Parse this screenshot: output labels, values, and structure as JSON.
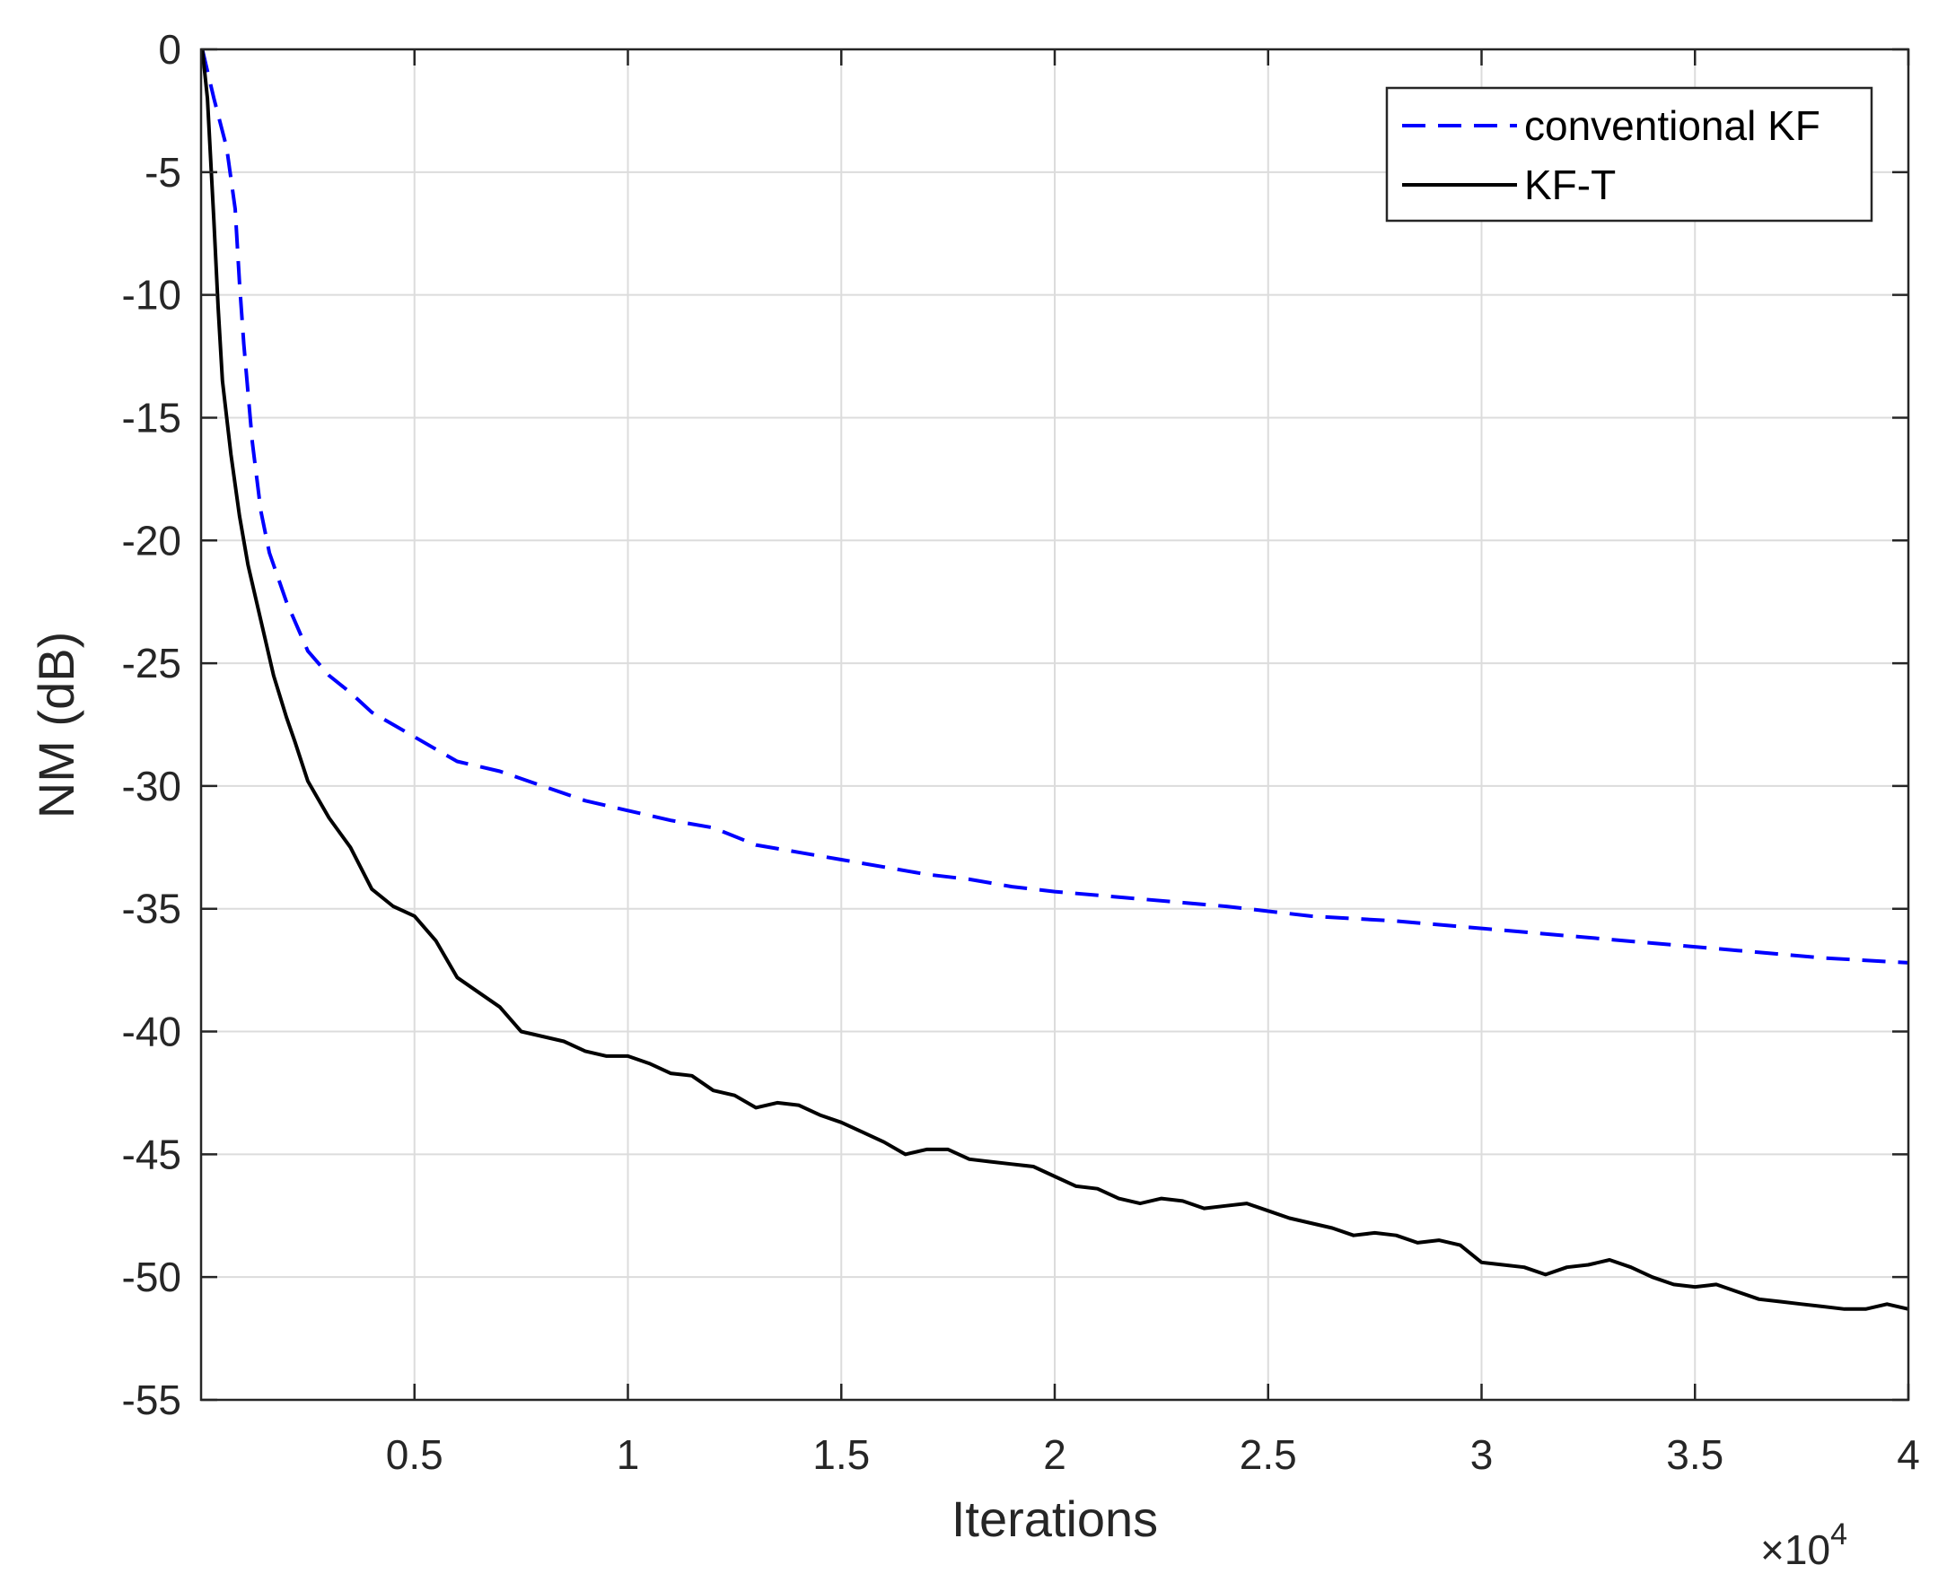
{
  "chart_data": {
    "type": "line",
    "xlabel": "Iterations",
    "ylabel": "NM (dB)",
    "x_exponent": {
      "base": "×10",
      "power": "4"
    },
    "xlim": [
      0,
      4
    ],
    "ylim": [
      -55,
      0
    ],
    "x_ticks": [
      {
        "value": 0.5,
        "label": "0.5"
      },
      {
        "value": 1,
        "label": "1"
      },
      {
        "value": 1.5,
        "label": "1.5"
      },
      {
        "value": 2,
        "label": "2"
      },
      {
        "value": 2.5,
        "label": "2.5"
      },
      {
        "value": 3,
        "label": "3"
      },
      {
        "value": 3.5,
        "label": "3.5"
      },
      {
        "value": 4,
        "label": "4"
      }
    ],
    "y_ticks": [
      {
        "value": 0,
        "label": "0"
      },
      {
        "value": -5,
        "label": "-5"
      },
      {
        "value": -10,
        "label": "-10"
      },
      {
        "value": -15,
        "label": "-15"
      },
      {
        "value": -20,
        "label": "-20"
      },
      {
        "value": -25,
        "label": "-25"
      },
      {
        "value": -30,
        "label": "-30"
      },
      {
        "value": -35,
        "label": "-35"
      },
      {
        "value": -40,
        "label": "-40"
      },
      {
        "value": -45,
        "label": "-45"
      },
      {
        "value": -50,
        "label": "-50"
      },
      {
        "value": -55,
        "label": "-55"
      }
    ],
    "grid": true,
    "legend_position": "top-right",
    "series": [
      {
        "name": "conventional KF",
        "color": "#0000ff",
        "style": "dashed",
        "x": [
          0.003,
          0.03,
          0.06,
          0.08,
          0.09,
          0.1,
          0.12,
          0.14,
          0.16,
          0.18,
          0.2,
          0.25,
          0.3,
          0.35,
          0.4,
          0.45,
          0.5,
          0.55,
          0.6,
          0.7,
          0.8,
          0.9,
          1.0,
          1.1,
          1.2,
          1.3,
          1.4,
          1.5,
          1.6,
          1.7,
          1.8,
          1.9,
          2.0,
          2.2,
          2.4,
          2.6,
          2.8,
          3.0,
          3.2,
          3.4,
          3.6,
          3.8,
          4.0
        ],
        "y": [
          0,
          -2,
          -4,
          -6.5,
          -9.5,
          -12,
          -16,
          -18.8,
          -20.5,
          -21.5,
          -22.5,
          -24.5,
          -25.5,
          -26.2,
          -27,
          -27.5,
          -28,
          -28.5,
          -29,
          -29.4,
          -30,
          -30.6,
          -31,
          -31.4,
          -31.7,
          -32.4,
          -32.7,
          -33,
          -33.3,
          -33.6,
          -33.8,
          -34.1,
          -34.3,
          -34.6,
          -34.9,
          -35.3,
          -35.5,
          -35.8,
          -36.1,
          -36.4,
          -36.7,
          -37,
          -37.2
        ]
      },
      {
        "name": "KF-T",
        "color": "#000000",
        "style": "solid",
        "x": [
          0.003,
          0.015,
          0.03,
          0.04,
          0.05,
          0.07,
          0.09,
          0.11,
          0.13,
          0.15,
          0.17,
          0.2,
          0.22,
          0.25,
          0.3,
          0.35,
          0.4,
          0.45,
          0.5,
          0.55,
          0.6,
          0.65,
          0.7,
          0.75,
          0.8,
          0.85,
          0.9,
          0.95,
          1.0,
          1.05,
          1.1,
          1.15,
          1.2,
          1.25,
          1.3,
          1.35,
          1.4,
          1.45,
          1.5,
          1.55,
          1.6,
          1.65,
          1.7,
          1.75,
          1.8,
          1.85,
          1.9,
          1.95,
          2.0,
          2.05,
          2.1,
          2.15,
          2.2,
          2.25,
          2.3,
          2.35,
          2.4,
          2.45,
          2.5,
          2.55,
          2.6,
          2.65,
          2.7,
          2.75,
          2.8,
          2.85,
          2.9,
          2.95,
          3.0,
          3.05,
          3.1,
          3.15,
          3.2,
          3.25,
          3.3,
          3.35,
          3.4,
          3.45,
          3.5,
          3.55,
          3.6,
          3.65,
          3.7,
          3.75,
          3.8,
          3.85,
          3.9,
          3.95,
          4.0
        ],
        "y": [
          0,
          -2,
          -7,
          -10.5,
          -13.5,
          -16.5,
          -19,
          -21,
          -22.5,
          -24,
          -25.5,
          -27.2,
          -28.2,
          -29.8,
          -31.3,
          -32.5,
          -34.2,
          -34.9,
          -35.3,
          -36.3,
          -37.8,
          -38.4,
          -39,
          -40,
          -40.2,
          -40.4,
          -40.8,
          -41,
          -41,
          -41.3,
          -41.7,
          -41.8,
          -42.4,
          -42.6,
          -43.1,
          -42.9,
          -43,
          -43.4,
          -43.7,
          -44.1,
          -44.5,
          -45,
          -44.8,
          -44.8,
          -45.2,
          -45.3,
          -45.4,
          -45.5,
          -45.9,
          -46.3,
          -46.4,
          -46.8,
          -47,
          -46.8,
          -46.9,
          -47.2,
          -47.1,
          -47,
          -47.3,
          -47.6,
          -47.8,
          -48,
          -48.3,
          -48.2,
          -48.3,
          -48.6,
          -48.5,
          -48.7,
          -49.4,
          -49.5,
          -49.6,
          -49.9,
          -49.6,
          -49.5,
          -49.3,
          -49.6,
          -50,
          -50.3,
          -50.4,
          -50.3,
          -50.6,
          -50.9,
          -51,
          -51.1,
          -51.2,
          -51.3,
          -51.3,
          -51.1,
          -51.3
        ]
      }
    ]
  }
}
